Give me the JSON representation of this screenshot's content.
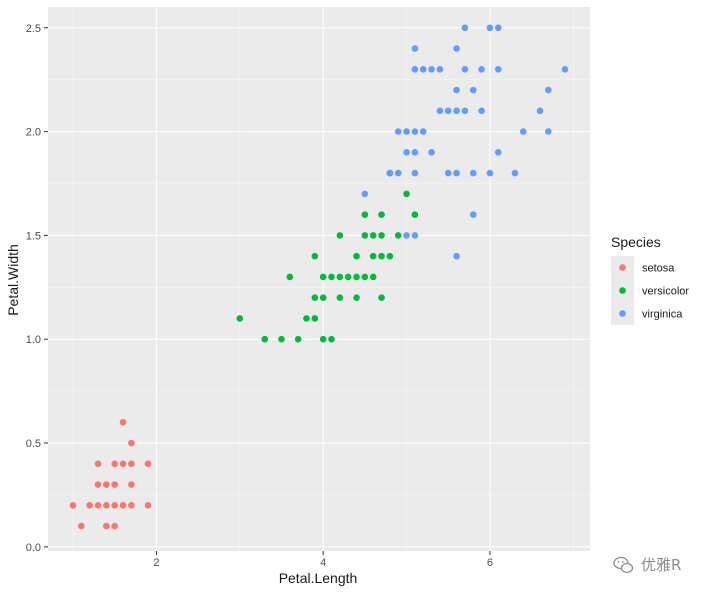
{
  "chart_data": {
    "type": "scatter",
    "xlabel": "Petal.Length",
    "ylabel": "Petal.Width",
    "xlim": [
      0.7,
      7.2
    ],
    "ylim": [
      -0.02,
      2.6
    ],
    "x_ticks": [
      2,
      4,
      6
    ],
    "x_tick_labels": [
      "2",
      "4",
      "6"
    ],
    "y_ticks": [
      0.0,
      0.5,
      1.0,
      1.5,
      2.0,
      2.5
    ],
    "y_tick_labels": [
      "0.0",
      "0.5",
      "1.0",
      "1.5",
      "2.0",
      "2.5"
    ],
    "grid": true,
    "legend": {
      "title": "Species",
      "position": "right"
    },
    "series": [
      {
        "name": "setosa",
        "color": "#F8766D",
        "points": [
          [
            1.0,
            0.2
          ],
          [
            1.1,
            0.1
          ],
          [
            1.2,
            0.2
          ],
          [
            1.3,
            0.2
          ],
          [
            1.3,
            0.3
          ],
          [
            1.3,
            0.4
          ],
          [
            1.4,
            0.1
          ],
          [
            1.4,
            0.2
          ],
          [
            1.4,
            0.3
          ],
          [
            1.5,
            0.1
          ],
          [
            1.5,
            0.2
          ],
          [
            1.5,
            0.3
          ],
          [
            1.5,
            0.4
          ],
          [
            1.6,
            0.2
          ],
          [
            1.6,
            0.4
          ],
          [
            1.6,
            0.6
          ],
          [
            1.7,
            0.2
          ],
          [
            1.7,
            0.3
          ],
          [
            1.7,
            0.4
          ],
          [
            1.7,
            0.5
          ],
          [
            1.9,
            0.2
          ],
          [
            1.9,
            0.4
          ]
        ]
      },
      {
        "name": "versicolor",
        "color": "#00BA38",
        "points": [
          [
            3.0,
            1.1
          ],
          [
            3.3,
            1.0
          ],
          [
            3.5,
            1.0
          ],
          [
            3.6,
            1.3
          ],
          [
            3.7,
            1.0
          ],
          [
            3.8,
            1.1
          ],
          [
            3.9,
            1.1
          ],
          [
            3.9,
            1.2
          ],
          [
            3.9,
            1.4
          ],
          [
            4.0,
            1.0
          ],
          [
            4.0,
            1.2
          ],
          [
            4.0,
            1.3
          ],
          [
            4.1,
            1.0
          ],
          [
            4.1,
            1.3
          ],
          [
            4.2,
            1.2
          ],
          [
            4.2,
            1.3
          ],
          [
            4.2,
            1.5
          ],
          [
            4.3,
            1.3
          ],
          [
            4.4,
            1.2
          ],
          [
            4.4,
            1.3
          ],
          [
            4.4,
            1.4
          ],
          [
            4.5,
            1.3
          ],
          [
            4.5,
            1.5
          ],
          [
            4.5,
            1.6
          ],
          [
            4.6,
            1.3
          ],
          [
            4.6,
            1.4
          ],
          [
            4.6,
            1.5
          ],
          [
            4.7,
            1.2
          ],
          [
            4.7,
            1.4
          ],
          [
            4.7,
            1.5
          ],
          [
            4.7,
            1.6
          ],
          [
            4.8,
            1.4
          ],
          [
            4.8,
            1.8
          ],
          [
            4.9,
            1.5
          ],
          [
            5.0,
            1.7
          ],
          [
            5.1,
            1.6
          ]
        ]
      },
      {
        "name": "virginica",
        "color": "#619CFF",
        "points": [
          [
            4.5,
            1.7
          ],
          [
            4.8,
            1.8
          ],
          [
            4.9,
            1.8
          ],
          [
            4.9,
            2.0
          ],
          [
            5.0,
            1.5
          ],
          [
            5.0,
            1.9
          ],
          [
            5.0,
            2.0
          ],
          [
            5.1,
            1.5
          ],
          [
            5.1,
            1.8
          ],
          [
            5.1,
            1.9
          ],
          [
            5.1,
            2.0
          ],
          [
            5.1,
            2.3
          ],
          [
            5.1,
            2.4
          ],
          [
            5.2,
            2.0
          ],
          [
            5.2,
            2.3
          ],
          [
            5.3,
            1.9
          ],
          [
            5.3,
            2.3
          ],
          [
            5.4,
            2.1
          ],
          [
            5.4,
            2.3
          ],
          [
            5.5,
            1.8
          ],
          [
            5.5,
            2.1
          ],
          [
            5.6,
            1.4
          ],
          [
            5.6,
            1.8
          ],
          [
            5.6,
            2.1
          ],
          [
            5.6,
            2.2
          ],
          [
            5.6,
            2.4
          ],
          [
            5.7,
            2.1
          ],
          [
            5.7,
            2.3
          ],
          [
            5.7,
            2.5
          ],
          [
            5.8,
            1.6
          ],
          [
            5.8,
            1.8
          ],
          [
            5.8,
            2.2
          ],
          [
            5.9,
            2.1
          ],
          [
            5.9,
            2.3
          ],
          [
            6.0,
            1.8
          ],
          [
            6.0,
            2.5
          ],
          [
            6.1,
            1.9
          ],
          [
            6.1,
            2.3
          ],
          [
            6.1,
            2.5
          ],
          [
            6.3,
            1.8
          ],
          [
            6.4,
            2.0
          ],
          [
            6.6,
            2.1
          ],
          [
            6.7,
            2.0
          ],
          [
            6.7,
            2.2
          ],
          [
            6.9,
            2.3
          ]
        ]
      }
    ]
  },
  "watermark": {
    "text": "优雅R",
    "icon": "wechat-icon"
  },
  "theme": {
    "panel_background": "#EBEBEB",
    "grid_major": "#FFFFFF",
    "grid_minor": "#F5F5F5",
    "tick_color": "#333333"
  }
}
